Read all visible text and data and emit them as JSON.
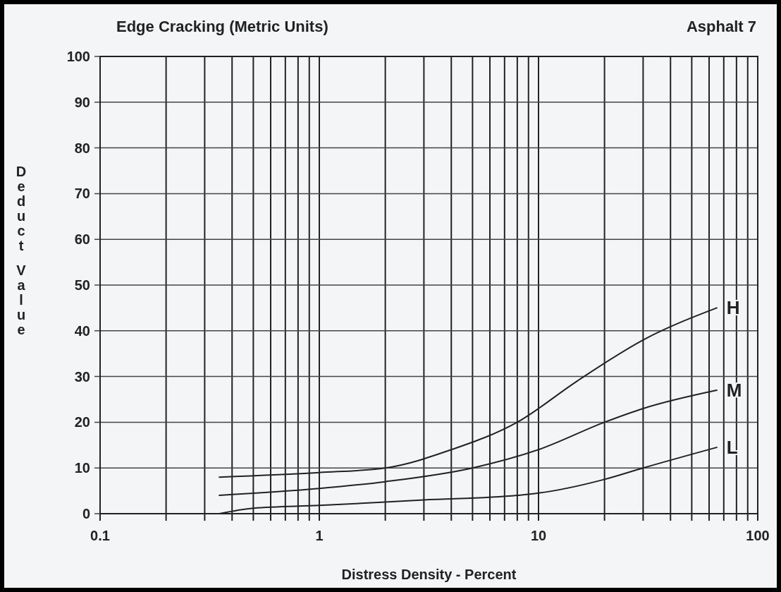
{
  "chart_data": {
    "type": "line",
    "title": "Edge Cracking (Metric Units)",
    "subtitle": "Asphalt 7",
    "xlabel": "Distress Density - Percent",
    "ylabel": "Deduct Value",
    "log": "x",
    "grid": true,
    "marker": "none",
    "line_style": "solid",
    "xlim": [
      0.1,
      100
    ],
    "ylim": [
      0,
      100
    ],
    "xticks": [
      0.1,
      {
        "value": 0.2,
        "label": null
      },
      {
        "value": 0.3,
        "label": null
      },
      {
        "value": 0.4,
        "label": null
      },
      {
        "value": 0.5,
        "label": null
      },
      {
        "value": 0.6,
        "label": null
      },
      {
        "value": 0.7,
        "label": null
      },
      {
        "value": 0.8,
        "label": null
      },
      {
        "value": 0.9,
        "label": null
      },
      1,
      {
        "value": 2,
        "label": null
      },
      {
        "value": 3,
        "label": null
      },
      {
        "value": 4,
        "label": null
      },
      {
        "value": 5,
        "label": null
      },
      {
        "value": 6,
        "label": null
      },
      {
        "value": 7,
        "label": null
      },
      {
        "value": 8,
        "label": null
      },
      {
        "value": 9,
        "label": null
      },
      10,
      {
        "value": 20,
        "label": null
      },
      {
        "value": 30,
        "label": null
      },
      {
        "value": 40,
        "label": null
      },
      {
        "value": 50,
        "label": null
      },
      {
        "value": 60,
        "label": null
      },
      {
        "value": 70,
        "label": null
      },
      {
        "value": 80,
        "label": null
      },
      {
        "value": 90,
        "label": null
      },
      100
    ],
    "yticks": [
      0,
      10,
      20,
      30,
      40,
      50,
      60,
      70,
      80,
      90,
      100
    ],
    "series": [
      {
        "name": "H",
        "color": "#222222",
        "x": [
          0.35,
          1,
          2,
          4,
          8,
          15,
          30,
          65
        ],
        "values": [
          8,
          9,
          10,
          14,
          20,
          29,
          38,
          45
        ]
      },
      {
        "name": "M",
        "color": "#222222",
        "x": [
          0.35,
          1,
          2,
          5,
          10,
          20,
          30,
          65
        ],
        "values": [
          4,
          5.5,
          7,
          10,
          14,
          20,
          23,
          27
        ]
      },
      {
        "name": "L",
        "color": "#222222",
        "x": [
          0.35,
          0.5,
          1,
          3,
          8,
          10,
          20,
          30,
          65
        ],
        "values": [
          0,
          1.2,
          1.8,
          3,
          4,
          4.5,
          7.5,
          10,
          14.5
        ]
      }
    ]
  }
}
